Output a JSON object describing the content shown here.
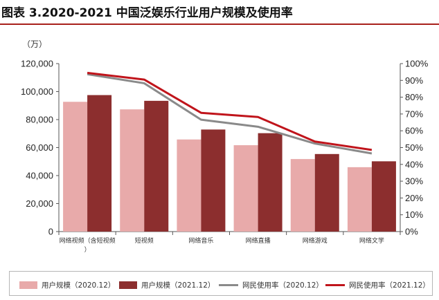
{
  "title": "图表 3.2020-2021 中国泛娱乐行业用户规模及使用率",
  "chart_data": {
    "type": "bar",
    "categories": [
      "网络视频（含短视频）",
      "短视频",
      "网络音乐",
      "网络直播",
      "网络游戏",
      "网络文学"
    ],
    "left_axis": {
      "unit": "（万）",
      "ylim": [
        0,
        120000
      ],
      "ticks": [
        "0",
        "20,000",
        "40,000",
        "60,000",
        "80,000",
        "100,000",
        "120,000"
      ]
    },
    "right_axis": {
      "ylim": [
        0,
        100
      ],
      "ticks": [
        "0%",
        "10%",
        "20%",
        "30%",
        "40%",
        "50%",
        "60%",
        "70%",
        "80%",
        "90%",
        "100%"
      ]
    },
    "bar_series": [
      {
        "name": "用户规模（2020.12）",
        "color": "#e8aaaa",
        "values": [
          92700,
          87300,
          65800,
          61700,
          51800,
          46000
        ]
      },
      {
        "name": "用户规模（2021.12）",
        "color": "#8c2e2e",
        "values": [
          97500,
          93400,
          72900,
          70300,
          55400,
          50200
        ]
      }
    ],
    "line_series": [
      {
        "name": "网民使用率（2020.12）",
        "color": "#8a8a8a",
        "values": [
          93.7,
          88.3,
          66.6,
          62.4,
          52.4,
          46.5
        ]
      },
      {
        "name": "网民使用率（2021.12）",
        "color": "#c0141b",
        "values": [
          94.5,
          90.5,
          70.7,
          68.2,
          53.6,
          48.6
        ]
      }
    ],
    "grid": false,
    "legend_position": "bottom"
  }
}
